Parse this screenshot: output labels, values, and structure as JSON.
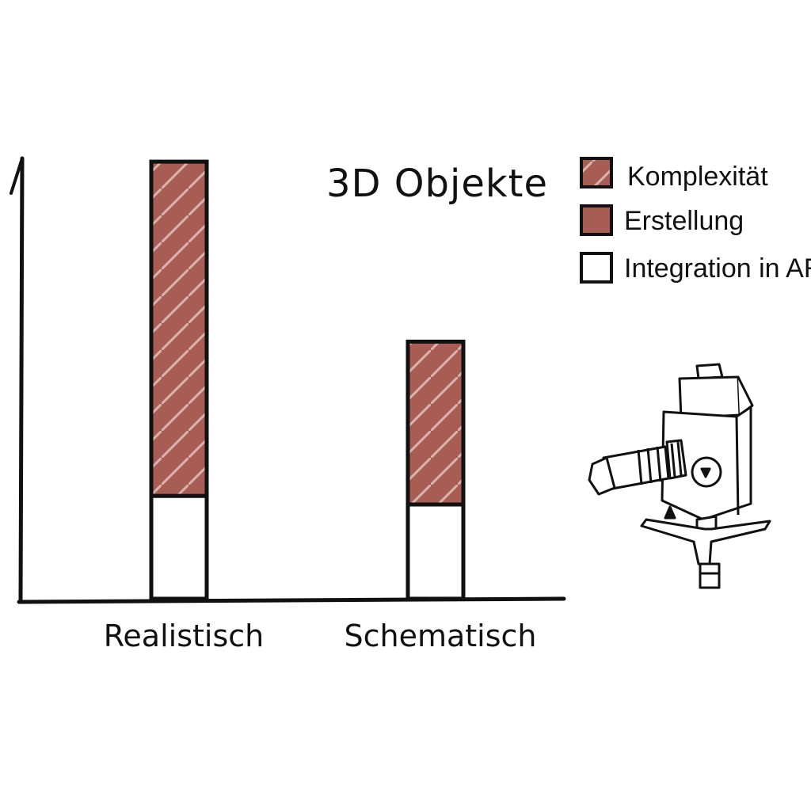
{
  "chart_data": {
    "type": "bar",
    "stacked": true,
    "title": "3D Objekte",
    "xlabel": "",
    "ylabel": "",
    "categories": [
      "Realistisch",
      "Schematisch"
    ],
    "series": [
      {
        "name": "Integration in AR",
        "values": [
          1.2,
          1.1
        ],
        "color": "#ffffff",
        "pattern": "none"
      },
      {
        "name": "Erstellung",
        "values": [
          0.0,
          0.0
        ],
        "color": "#a85d54",
        "pattern": "none"
      },
      {
        "name": "Komplexität",
        "values": [
          3.9,
          1.9
        ],
        "color": "#a85d54",
        "pattern": "hatch"
      }
    ],
    "ylim": [
      0,
      5.6
    ],
    "grid": false,
    "legend_position": "top-right",
    "axis_ticks_shown": false
  },
  "colors": {
    "bar_fill": "#a85d54",
    "outline": "#111111",
    "hatch": "#d9b2ad"
  },
  "illustration": {
    "icon": "camera-on-tripod-icon"
  }
}
